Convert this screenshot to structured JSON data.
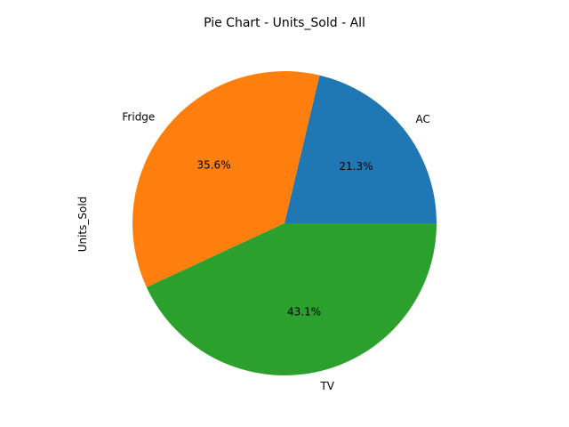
{
  "chart_data": {
    "type": "pie",
    "title": "Pie Chart - Units_Sold - All",
    "ylabel": "Units_Sold",
    "categories": [
      "AC",
      "Fridge",
      "TV"
    ],
    "percentages": [
      21.3,
      35.6,
      43.1
    ],
    "percent_labels": [
      "21.3%",
      "35.6%",
      "43.1%"
    ],
    "colors": [
      "#1f77b4",
      "#ff7f0e",
      "#2ca02c"
    ],
    "start_angle_deg": 0,
    "direction": "counterclockwise"
  }
}
